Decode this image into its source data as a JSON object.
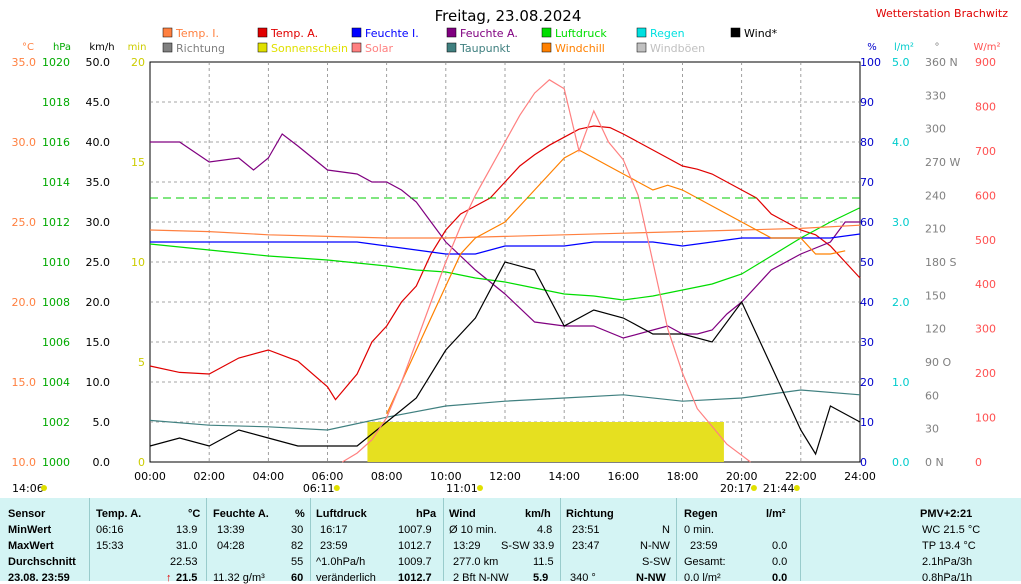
{
  "chart_data": {
    "type": "line",
    "title": "Freitag, 23.08.2024",
    "station": "Wetterstation Brachwitz",
    "x_ticks": [
      "00:00",
      "02:00",
      "04:00",
      "06:00",
      "08:00",
      "10:00",
      "12:00",
      "14:00",
      "16:00",
      "18:00",
      "20:00",
      "22:00",
      "24:00"
    ],
    "legend": [
      {
        "name": "Temp. I.",
        "color": "#ff8040"
      },
      {
        "name": "Temp. A.",
        "color": "#e00000"
      },
      {
        "name": "Feuchte I.",
        "color": "#0000ff"
      },
      {
        "name": "Feuchte A.",
        "color": "#800080"
      },
      {
        "name": "Luftdruck",
        "color": "#00dd00"
      },
      {
        "name": "Regen",
        "color": "#00e0e0"
      },
      {
        "name": "Wind*",
        "color": "#000000"
      },
      {
        "name": "Richtung",
        "color": "#808080"
      },
      {
        "name": "Sonnenschein",
        "color": "#e0e000"
      },
      {
        "name": "Solar",
        "color": "#ff8080"
      },
      {
        "name": "Taupunkt",
        "color": "#408080"
      },
      {
        "name": "Windchill",
        "color": "#ff8000"
      },
      {
        "name": "Windböen",
        "color": "#c0c0c0"
      }
    ],
    "axes": [
      {
        "unit": "°C",
        "color": "#ff8040",
        "ticks": [
          "35.0",
          "30.0",
          "25.0",
          "20.0",
          "15.0",
          "10.0"
        ]
      },
      {
        "unit": "hPa",
        "color": "#00aa00",
        "ticks": [
          "1020",
          "1018",
          "1016",
          "1014",
          "1012",
          "1010",
          "1008",
          "1006",
          "1004",
          "1002",
          "1000"
        ]
      },
      {
        "unit": "km/h",
        "color": "#000000",
        "ticks": [
          "50.0",
          "45.0",
          "40.0",
          "35.0",
          "30.0",
          "25.0",
          "20.0",
          "15.0",
          "10.0",
          "5.0",
          "0.0"
        ]
      },
      {
        "unit": "min",
        "color": "#cccc00",
        "ticks": [
          "20",
          "15",
          "10",
          "5",
          "0"
        ]
      },
      {
        "unit": "%",
        "color": "#0000cc",
        "ticks": [
          "100",
          "90",
          "80",
          "70",
          "60",
          "50",
          "40",
          "30",
          "20",
          "10",
          "0"
        ]
      },
      {
        "unit": "l/m²",
        "color": "#00cccc",
        "ticks": [
          "5.0",
          "4.0",
          "3.0",
          "2.0",
          "1.0",
          "0.0"
        ]
      },
      {
        "unit": "°",
        "color": "#808080",
        "ticks": [
          "360 N",
          "330",
          "300",
          "270 W",
          "240",
          "210",
          "180 S",
          "150",
          "120",
          "90 O",
          "60",
          "30",
          "0 N"
        ]
      },
      {
        "unit": "W/m²",
        "color": "#ff5050",
        "ticks": [
          "900",
          "800",
          "700",
          "600",
          "500",
          "400",
          "300",
          "200",
          "100",
          "0"
        ]
      }
    ],
    "series": [
      {
        "name": "Temp. A.",
        "unit": "°C",
        "x": [
          0,
          1,
          2,
          3,
          4,
          5,
          6,
          6.27,
          7,
          7.5,
          8,
          8.5,
          9,
          9.5,
          10,
          10.5,
          11,
          11.5,
          12,
          12.5,
          13,
          13.5,
          14,
          14.5,
          15,
          15.55,
          16,
          16.5,
          17,
          17.5,
          18,
          18.5,
          19,
          19.5,
          20,
          20.5,
          21,
          21.5,
          22,
          22.5,
          23,
          23.5,
          24
        ],
        "y": [
          16,
          15.6,
          15.5,
          16.5,
          17,
          16.3,
          14.7,
          13.9,
          15.5,
          17.5,
          18.5,
          20,
          21,
          23,
          24.5,
          25.5,
          26,
          26.5,
          27.5,
          28.5,
          29.2,
          29.8,
          30.3,
          30.8,
          31.0,
          30.9,
          30.5,
          30,
          29.5,
          29,
          28.5,
          28.3,
          28,
          27.5,
          27,
          26.5,
          25.5,
          25,
          24.5,
          24.2,
          23.5,
          22.5,
          21.5
        ]
      },
      {
        "name": "Feuchte A.",
        "unit": "%",
        "x": [
          0,
          1,
          2,
          3,
          3.5,
          4,
          4.47,
          5,
          6,
          7,
          7.5,
          8,
          8.5,
          9,
          9.5,
          10,
          11,
          12,
          13,
          14,
          15,
          16,
          17,
          17.5,
          18,
          18.5,
          19,
          19.5,
          20,
          21,
          22,
          23,
          23.5,
          24
        ],
        "y": [
          80,
          80,
          75,
          76,
          73,
          76,
          82,
          79,
          73,
          72,
          70,
          70,
          68,
          65,
          60,
          55,
          48,
          42,
          35,
          34,
          34,
          31,
          33,
          34,
          32,
          32,
          33,
          37,
          40,
          48,
          52,
          55,
          60,
          60
        ]
      },
      {
        "name": "Feuchte I.",
        "unit": "%",
        "x": [
          0,
          7,
          8,
          9,
          10,
          11,
          12,
          13,
          14,
          15,
          16,
          17,
          18,
          19,
          20,
          21,
          22,
          23,
          24
        ],
        "y": [
          55,
          55,
          54,
          53,
          52,
          52,
          54,
          54,
          54,
          55,
          55,
          55,
          54,
          55,
          56,
          56,
          56,
          56,
          57
        ]
      },
      {
        "name": "Luftdruck",
        "unit": "hPa",
        "x": [
          0,
          2,
          4,
          6,
          8,
          9,
          10,
          11,
          12,
          13,
          14,
          15,
          16,
          17,
          18,
          19,
          20,
          21,
          22,
          23,
          23.98
        ],
        "y": [
          1010.9,
          1010.6,
          1010.3,
          1010.1,
          1009.8,
          1009.6,
          1009.5,
          1009.2,
          1009.0,
          1008.7,
          1008.4,
          1008.3,
          1008.1,
          1008.3,
          1008.6,
          1008.9,
          1009.4,
          1010.3,
          1011.2,
          1012.0,
          1012.7
        ]
      },
      {
        "name": "Taupunkt",
        "unit": "°C",
        "x": [
          0,
          2,
          4,
          6,
          8,
          10,
          12,
          14,
          16,
          18,
          20,
          22,
          24
        ],
        "y": [
          12.6,
          12.3,
          12.2,
          12.0,
          12.8,
          13.5,
          13.8,
          14.0,
          14.2,
          13.8,
          14.0,
          14.5,
          14.2
        ]
      },
      {
        "name": "Temp. I.",
        "unit": "°C",
        "x": [
          0,
          2,
          4,
          6,
          8,
          10,
          12,
          14,
          16,
          18,
          20,
          22,
          24
        ],
        "y": [
          24.5,
          24.4,
          24.2,
          24.1,
          24.0,
          24.0,
          24.1,
          24.2,
          24.3,
          24.4,
          24.5,
          24.6,
          24.8
        ]
      },
      {
        "name": "Windchill",
        "unit": "°C",
        "x": [
          8,
          8.5,
          9,
          9.5,
          10,
          10.5,
          11,
          11.5,
          12,
          12.5,
          13,
          13.5,
          14,
          14.5,
          15,
          15.5,
          16,
          16.5,
          17,
          17.5,
          18,
          18.5,
          19,
          19.5,
          20,
          20.5,
          21,
          21.5,
          22,
          22.5,
          23,
          23.5
        ],
        "y": [
          13,
          15,
          17,
          19,
          21,
          23,
          24,
          24.5,
          25,
          26,
          27,
          28,
          29,
          29.5,
          29,
          28.5,
          28,
          27.5,
          27,
          27.3,
          27,
          26.5,
          26,
          25.5,
          25,
          24.5,
          24,
          24,
          24,
          23,
          23,
          23.2
        ]
      },
      {
        "name": "Wind*",
        "unit": "km/h",
        "x": [
          0,
          1,
          2,
          3,
          4,
          5,
          6,
          7,
          8,
          9,
          10,
          11,
          12,
          13,
          14,
          15,
          16,
          17,
          18,
          19,
          20,
          21,
          22,
          22.5,
          23,
          24
        ],
        "y": [
          2,
          3,
          2,
          4,
          3,
          2,
          2,
          2,
          5,
          8,
          14,
          18,
          25,
          24,
          17,
          19,
          18,
          16,
          16,
          15,
          20,
          12,
          4,
          1,
          7,
          5
        ]
      },
      {
        "name": "Solar",
        "unit": "W/m²",
        "x": [
          6.5,
          7,
          7.5,
          8,
          8.5,
          9,
          9.5,
          10,
          10.5,
          11,
          11.5,
          12,
          12.5,
          13,
          13.5,
          14,
          14.5,
          15,
          15.5,
          16,
          16.5,
          17,
          17.5,
          18,
          18.5,
          19,
          19.5,
          20,
          20.3
        ],
        "y": [
          0,
          20,
          50,
          100,
          180,
          270,
          360,
          450,
          530,
          600,
          660,
          720,
          780,
          830,
          860,
          840,
          700,
          790,
          720,
          680,
          600,
          450,
          300,
          200,
          120,
          80,
          40,
          15,
          0
        ]
      }
    ],
    "sunshine": {
      "start": 7.35,
      "end": 19.4,
      "level": 2
    },
    "markers": [
      {
        "label": "14:06",
        "pos": 0
      },
      {
        "label": "06:11",
        "pos": 6.18
      },
      {
        "label": "11:01",
        "pos": 11.02
      },
      {
        "label": "20:17",
        "pos": 20.28
      },
      {
        "label": "21:44",
        "pos": 21.73
      }
    ]
  },
  "stats": {
    "col1": {
      "h0": "Sensor",
      "r1": "MinWert",
      "r2": "MaxWert",
      "r3": "Durchschnitt",
      "r4": "23.08. 23:59"
    },
    "col2": {
      "h0": "Temp. A.",
      "h0u": "°C",
      "r1a": "06:16",
      "r1b": "13.9",
      "r2a": "15:33",
      "r2b": "31.0",
      "r3b": "22.53",
      "r4b": "21.5"
    },
    "col3": {
      "h0": "Feuchte A.",
      "h0u": "%",
      "r1a": "13:39",
      "r1b": "30",
      "r2a": "04:28",
      "r2b": "82",
      "r3b": "55",
      "r4a": "11.32 g/m³",
      "r4b": "60"
    },
    "col4": {
      "h0": "Luftdruck",
      "h0u": "hPa",
      "r1a": "16:17",
      "r1b": "1007.9",
      "r2a": "23:59",
      "r2b": "1012.7",
      "r3a": "^1.0hPa/h",
      "r3b": "1009.7",
      "r4a": "veränderlich",
      "r4b": "1012.7"
    },
    "col5": {
      "h0": "Wind",
      "h0u": "km/h",
      "r1a": "Ø 10 min.",
      "r1b": "4.8",
      "r2a": "13:29",
      "r2b": "S-SW 33.9",
      "r3a": "277.0 km",
      "r3b": "11.5",
      "r4a": "2 Bft N-NW",
      "r4b": "5.9"
    },
    "col6": {
      "h0": "Richtung",
      "r1a": "23:51",
      "r1b": "N",
      "r2a": "23:47",
      "r2b": "N-NW",
      "r3b": "S-SW",
      "r4a": "340 °",
      "r4b": "N-NW"
    },
    "col7": {
      "h0": "Regen",
      "h0u": "l/m²",
      "r1a": "0 min.",
      "r2a": "23:59",
      "r2b": "0.0",
      "r3a": "Gesamt:",
      "r3b": "0.0",
      "r4a": "0.0 l/m²",
      "r4b": "0.0"
    },
    "col8": {
      "h0": "PMV+2:21",
      "r1": "WC 21.5 °C",
      "r2": "TP 13.4 °C",
      "r3": "2.1hPa/3h",
      "r4": "0.8hPa/1h"
    }
  }
}
